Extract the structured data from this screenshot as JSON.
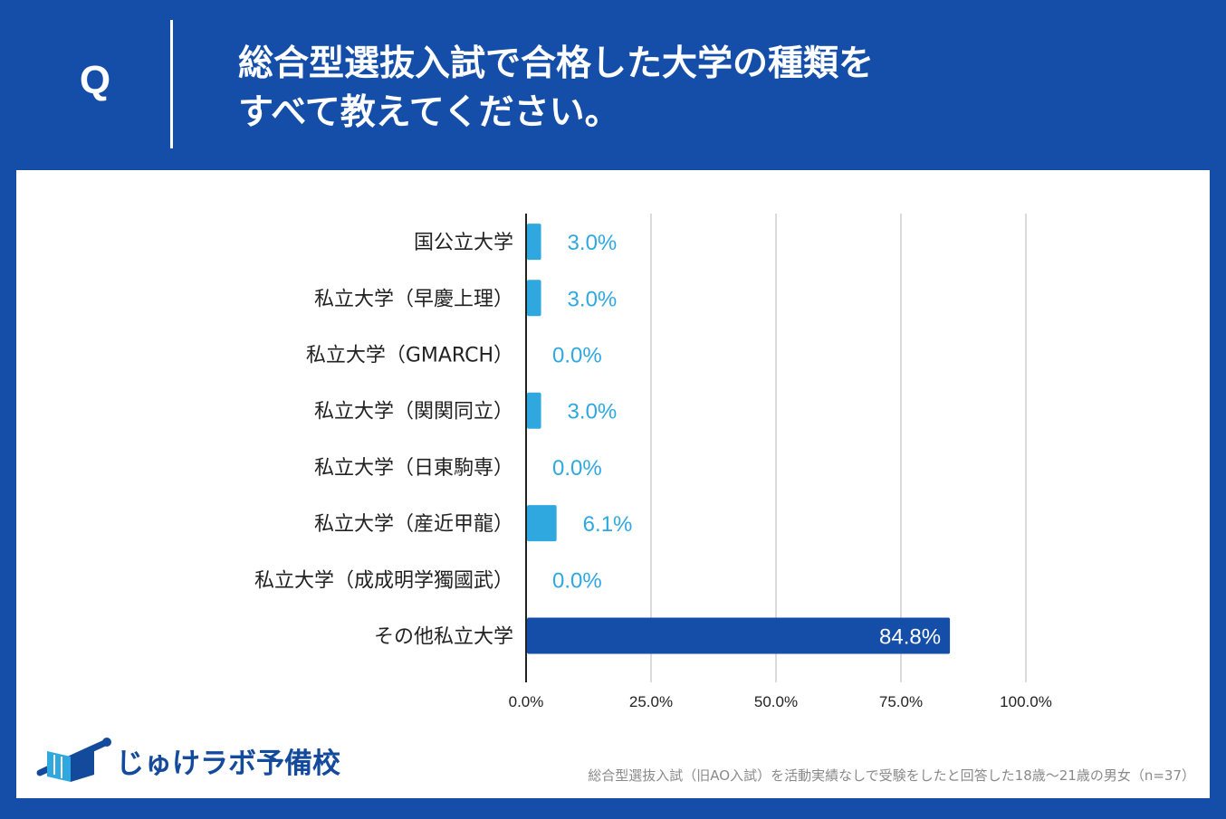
{
  "header": {
    "q_label": "Q",
    "title_line1": "総合型選抜入試で合格した大学の種類を",
    "title_line2": "すべて教えてください。"
  },
  "colors": {
    "background": "#144ea8",
    "bar_light": "#2fa8e0",
    "bar_dark": "#144ea8",
    "grid": "#cfcfcf",
    "axis": "#222222"
  },
  "chart_data": {
    "type": "bar",
    "orientation": "horizontal",
    "title": "総合型選抜入試で合格した大学の種類をすべて教えてください。",
    "categories": [
      "国公立大学",
      "私立大学（早慶上理）",
      "私立大学（GMARCH）",
      "私立大学（関関同立）",
      "私立大学（日東駒専）",
      "私立大学（産近甲龍）",
      "私立大学（成成明学獨國武）",
      "その他私立大学"
    ],
    "values": [
      3.0,
      3.0,
      0.0,
      3.0,
      0.0,
      6.1,
      0.0,
      84.8
    ],
    "value_labels": [
      "3.0%",
      "3.0%",
      "0.0%",
      "3.0%",
      "0.0%",
      "6.1%",
      "0.0%",
      "84.8%"
    ],
    "xlim": [
      0,
      100
    ],
    "xticks": [
      0,
      25,
      50,
      75,
      100
    ],
    "xtick_labels": [
      "0.0%",
      "25.0%",
      "50.0%",
      "75.0%",
      "100.0%"
    ],
    "grid": true,
    "xlabel": "",
    "ylabel": ""
  },
  "brand": {
    "name": "じゅけラボ予備校",
    "icon": "book-logo-icon"
  },
  "footnote": "総合型選抜入試（旧AO入試）を活動実績なしで受験をしたと回答した18歳～21歳の男女（n=37）"
}
